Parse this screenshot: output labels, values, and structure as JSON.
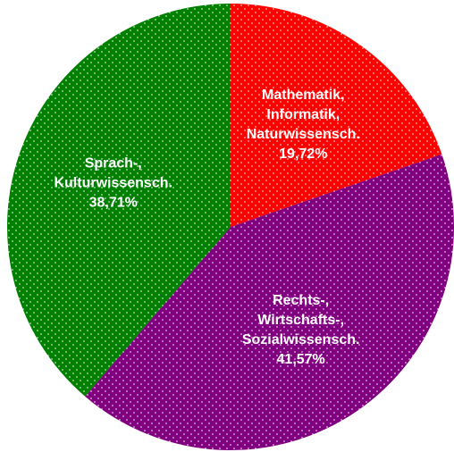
{
  "chart_data": {
    "type": "pie",
    "categories": [
      [
        "Mathematik,",
        "Informatik,",
        "Naturwissensch."
      ],
      [
        "Rechts-,",
        "Wirtschafts-,",
        "Sozialwissensch."
      ],
      [
        "Sprach-,",
        "Kulturwissensch."
      ]
    ],
    "values": [
      19.72,
      41.57,
      38.71
    ],
    "value_labels": [
      "19,72%",
      "41,57%",
      "38,71%"
    ],
    "colors": [
      "#ff0000",
      "#800080",
      "#008000"
    ],
    "start_angle": 0,
    "direction": "clockwise"
  }
}
